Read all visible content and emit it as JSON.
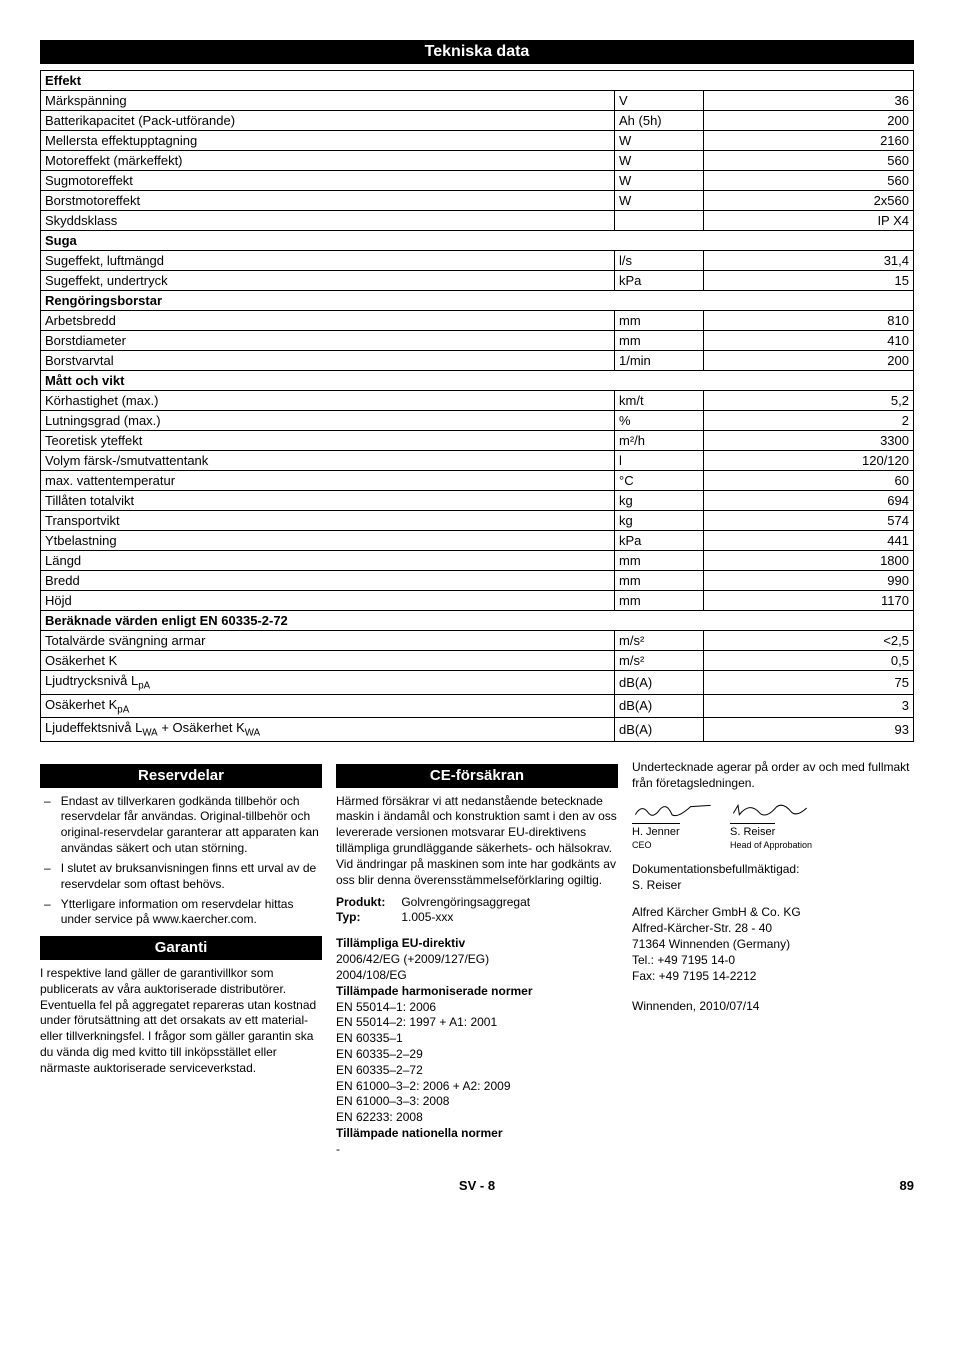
{
  "heading": "Tekniska data",
  "table": [
    {
      "type": "section",
      "label": "Effekt"
    },
    {
      "label": "Märkspänning",
      "unit": "V",
      "value": "36"
    },
    {
      "label": "Batterikapacitet (Pack-utförande)",
      "unit": "Ah (5h)",
      "value": "200"
    },
    {
      "label": "Mellersta effektupptagning",
      "unit": "W",
      "value": "2160"
    },
    {
      "label": "Motoreffekt (märkeffekt)",
      "unit": "W",
      "value": "560"
    },
    {
      "label": "Sugmotoreffekt",
      "unit": "W",
      "value": "560"
    },
    {
      "label": "Borstmotoreffekt",
      "unit": "W",
      "value": "2x560"
    },
    {
      "label": "Skyddsklass",
      "unit": "",
      "value": "IP X4"
    },
    {
      "type": "section",
      "label": "Suga"
    },
    {
      "label": "Sugeffekt, luftmängd",
      "unit": "l/s",
      "value": "31,4"
    },
    {
      "label": "Sugeffekt, undertryck",
      "unit": "kPa",
      "value": "15"
    },
    {
      "type": "section",
      "label": "Rengöringsborstar"
    },
    {
      "label": "Arbetsbredd",
      "unit": "mm",
      "value": "810"
    },
    {
      "label": "Borstdiameter",
      "unit": "mm",
      "value": "410"
    },
    {
      "label": "Borstvarvtal",
      "unit": "1/min",
      "value": "200"
    },
    {
      "type": "section",
      "label": "Mått och vikt"
    },
    {
      "label": "Körhastighet (max.)",
      "unit": "km/t",
      "value": "5,2"
    },
    {
      "label": "Lutningsgrad (max.)",
      "unit": "%",
      "value": "2"
    },
    {
      "label": "Teoretisk yteffekt",
      "unit": "m²/h",
      "value": "3300"
    },
    {
      "label": "Volym färsk-/smutvattentank",
      "unit": "l",
      "value": "120/120"
    },
    {
      "label": "max. vattentemperatur",
      "unit": "°C",
      "value": "60"
    },
    {
      "label": "Tillåten totalvikt",
      "unit": "kg",
      "value": "694"
    },
    {
      "label": "Transportvikt",
      "unit": "kg",
      "value": "574"
    },
    {
      "label": "Ytbelastning",
      "unit": "kPa",
      "value": "441"
    },
    {
      "label": "Längd",
      "unit": "mm",
      "value": "1800"
    },
    {
      "label": "Bredd",
      "unit": "mm",
      "value": "990"
    },
    {
      "label": "Höjd",
      "unit": "mm",
      "value": "1170"
    },
    {
      "type": "section",
      "label": "Beräknade värden enligt EN 60335-2-72"
    },
    {
      "label": "Totalvärde svängning armar",
      "unit": "m/s²",
      "value": "<2,5"
    },
    {
      "label": "Osäkerhet K",
      "unit": "m/s²",
      "value": "0,5"
    },
    {
      "label": "Ljudtrycksnivå L<sub>pA</sub>",
      "unit": "dB(A)",
      "value": "75",
      "html": true
    },
    {
      "label": "Osäkerhet K<sub>pA</sub>",
      "unit": "dB(A)",
      "value": "3",
      "html": true
    },
    {
      "label": "Ljudeffektsnivå L<sub>WA</sub> + Osäkerhet K<sub>WA</sub>",
      "unit": "dB(A)",
      "value": "93",
      "html": true
    }
  ],
  "reservdelar": {
    "title": "Reservdelar",
    "items": [
      "Endast av tillverkaren godkända tillbehör och reservdelar får användas. Original-tillbehör och original-reservdelar garanterar att apparaten kan användas säkert och utan störning.",
      "I slutet av bruksanvisningen finns ett urval av de reservdelar som oftast behövs.",
      "Ytterligare information om reservdelar hittas under service på www.kaercher.com."
    ]
  },
  "garanti": {
    "title": "Garanti",
    "text": "I respektive land gäller de garantivillkor som publicerats av våra auktoriserade distributörer. Eventuella fel på aggregatet repareras utan kostnad under förutsättning att det orsakats av ett material- eller tillverkningsfel. I frågor som gäller garantin ska du vända dig med kvitto till inköpsstället eller närmaste auktoriserade serviceverkstad."
  },
  "ce": {
    "title": "CE-försäkran",
    "intro": "Härmed försäkrar vi att nedanstående betecknade maskin i ändamål och konstruktion samt i den av oss levererade versionen motsvarar EU-direktivens tillämpliga grundläggande säkerhets- och hälsokrav. Vid ändringar på maskinen som inte har godkänts av oss blir denna överensstämmelseförklaring ogiltig.",
    "produkt_label": "Produkt:",
    "produkt": "Golvrengöringsaggregat",
    "typ_label": "Typ:",
    "typ": "1.005-xxx",
    "dir_heading": "Tillämpliga EU-direktiv",
    "dirs": [
      "2006/42/EG (+2009/127/EG)",
      "2004/108/EG"
    ],
    "norm_heading": "Tillämpade harmoniserade normer",
    "norms": [
      "EN 55014–1: 2006",
      "EN 55014–2: 1997 + A1: 2001",
      "EN 60335–1",
      "EN 60335–2–29",
      "EN 60335–2–72",
      "EN 61000–3–2: 2006 + A2: 2009",
      "EN 61000–3–3: 2008",
      "EN 62233: 2008"
    ],
    "nat_heading": "Tillämpade nationella normer",
    "nat": "-"
  },
  "right": {
    "lead": "Undertecknade agerar på order av och med fullmakt från företagsledningen.",
    "sig1_name": "H. Jenner",
    "sig1_title": "CEO",
    "sig2_name": "S. Reiser",
    "sig2_title": "Head of Approbation",
    "doc_label": "Dokumentationsbefullmäktigad:",
    "doc_name": "S. Reiser",
    "company": "Alfred Kärcher GmbH & Co. KG",
    "street": "Alfred-Kärcher-Str. 28 - 40",
    "city": "71364 Winnenden (Germany)",
    "tel": "Tel.: +49 7195 14-0",
    "fax": "Fax: +49 7195 14-2212",
    "place_date": "Winnenden, 2010/07/14"
  },
  "footer": {
    "lang": "SV",
    "sep": " - ",
    "page": "8",
    "abs": "89"
  }
}
